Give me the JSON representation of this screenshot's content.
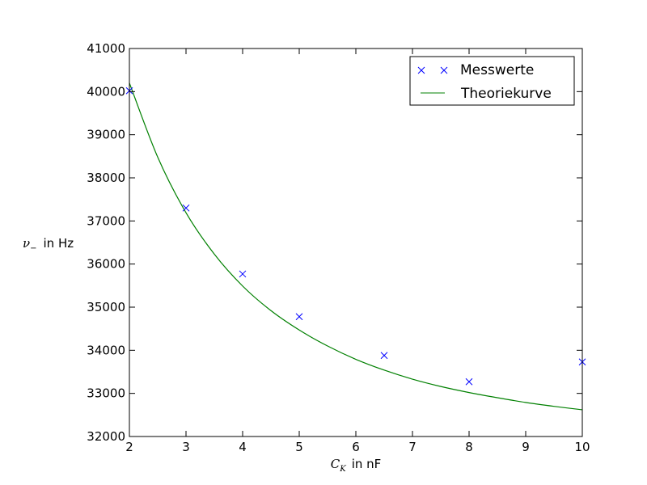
{
  "chart_data": {
    "type": "scatter",
    "xlabel_symbol": "C",
    "xlabel_sub": "K",
    "xlabel_unit": "in nF",
    "ylabel_symbol": "ν",
    "ylabel_sub": "−",
    "ylabel_unit": "in Hz",
    "xlim": [
      2,
      10
    ],
    "ylim": [
      32000,
      41000
    ],
    "xticks": [
      2,
      3,
      4,
      5,
      6,
      7,
      8,
      9,
      10
    ],
    "yticks": [
      32000,
      33000,
      34000,
      35000,
      36000,
      37000,
      38000,
      39000,
      40000,
      41000
    ],
    "grid": false,
    "legend_position": "top-right",
    "series": [
      {
        "name": "Messwerte",
        "kind": "marker",
        "marker": "x",
        "color": "#0000ff",
        "x": [
          2,
          3,
          4,
          5,
          6.5,
          8,
          10
        ],
        "y": [
          40020,
          37300,
          35770,
          34780,
          33880,
          33270,
          33730
        ]
      },
      {
        "name": "Theoriekurve",
        "kind": "line",
        "color": "#008000",
        "x": [
          2,
          2.5,
          3,
          3.5,
          4,
          4.5,
          5,
          5.5,
          6,
          6.5,
          7,
          7.5,
          8,
          8.5,
          9,
          9.5,
          10
        ],
        "y": [
          40200,
          38480,
          37190,
          36230,
          35490,
          34920,
          34470,
          34100,
          33790,
          33540,
          33330,
          33160,
          33020,
          32900,
          32790,
          32700,
          32620
        ]
      }
    ]
  }
}
